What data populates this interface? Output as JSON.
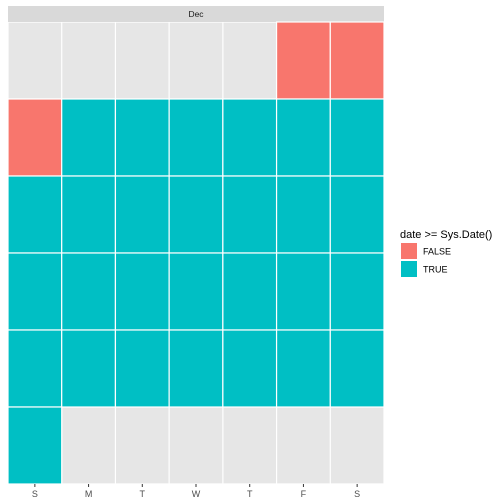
{
  "chart_data": {
    "type": "heatmap",
    "facet_label": "Dec",
    "x_categories": [
      "S",
      "M",
      "T",
      "W",
      "T",
      "F",
      "S"
    ],
    "rows": 6,
    "grid": true,
    "legend": {
      "title": "date >= Sys.Date()",
      "position": "right",
      "entries": [
        {
          "label": "FALSE",
          "color": "#F8766D"
        },
        {
          "label": "TRUE",
          "color": "#00BFC4"
        }
      ]
    },
    "cells": [
      {
        "row": 0,
        "col": 5,
        "value": "FALSE"
      },
      {
        "row": 0,
        "col": 6,
        "value": "FALSE"
      },
      {
        "row": 1,
        "col": 0,
        "value": "FALSE"
      },
      {
        "row": 1,
        "col": 1,
        "value": "TRUE"
      },
      {
        "row": 1,
        "col": 2,
        "value": "TRUE"
      },
      {
        "row": 1,
        "col": 3,
        "value": "TRUE"
      },
      {
        "row": 1,
        "col": 4,
        "value": "TRUE"
      },
      {
        "row": 1,
        "col": 5,
        "value": "TRUE"
      },
      {
        "row": 1,
        "col": 6,
        "value": "TRUE"
      },
      {
        "row": 2,
        "col": 0,
        "value": "TRUE"
      },
      {
        "row": 2,
        "col": 1,
        "value": "TRUE"
      },
      {
        "row": 2,
        "col": 2,
        "value": "TRUE"
      },
      {
        "row": 2,
        "col": 3,
        "value": "TRUE"
      },
      {
        "row": 2,
        "col": 4,
        "value": "TRUE"
      },
      {
        "row": 2,
        "col": 5,
        "value": "TRUE"
      },
      {
        "row": 2,
        "col": 6,
        "value": "TRUE"
      },
      {
        "row": 3,
        "col": 0,
        "value": "TRUE"
      },
      {
        "row": 3,
        "col": 1,
        "value": "TRUE"
      },
      {
        "row": 3,
        "col": 2,
        "value": "TRUE"
      },
      {
        "row": 3,
        "col": 3,
        "value": "TRUE"
      },
      {
        "row": 3,
        "col": 4,
        "value": "TRUE"
      },
      {
        "row": 3,
        "col": 5,
        "value": "TRUE"
      },
      {
        "row": 3,
        "col": 6,
        "value": "TRUE"
      },
      {
        "row": 4,
        "col": 0,
        "value": "TRUE"
      },
      {
        "row": 4,
        "col": 1,
        "value": "TRUE"
      },
      {
        "row": 4,
        "col": 2,
        "value": "TRUE"
      },
      {
        "row": 4,
        "col": 3,
        "value": "TRUE"
      },
      {
        "row": 4,
        "col": 4,
        "value": "TRUE"
      },
      {
        "row": 4,
        "col": 5,
        "value": "TRUE"
      },
      {
        "row": 4,
        "col": 6,
        "value": "TRUE"
      },
      {
        "row": 5,
        "col": 0,
        "value": "TRUE"
      }
    ]
  }
}
